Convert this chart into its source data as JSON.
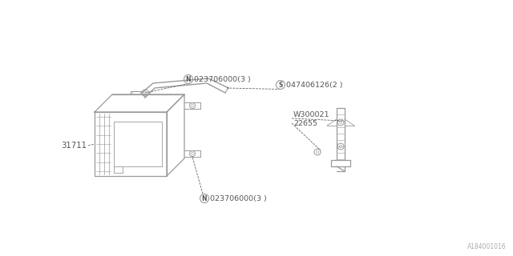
{
  "bg_color": "#ffffff",
  "lc": "#999999",
  "tc": "#555555",
  "fig_width": 6.4,
  "fig_height": 3.2,
  "watermark": "A184001016",
  "labels": {
    "N_top": "023706000(3 )",
    "S_label": "047406126(2 )",
    "W_label": "W300021",
    "part_22655": "22655",
    "part_31711": "31711"
  }
}
